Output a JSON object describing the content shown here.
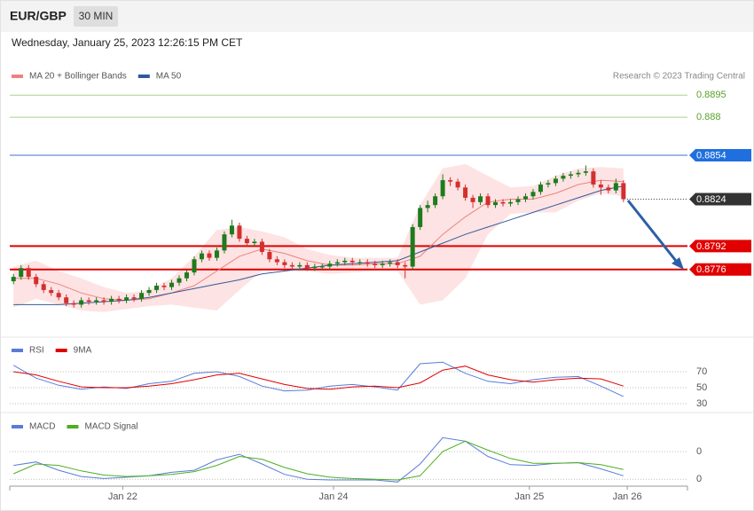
{
  "header": {
    "symbol": "EUR/GBP",
    "interval": "30 MIN",
    "timestamp": "Wednesday, January 25, 2023 12:26:15 PM CET"
  },
  "chart_data": [
    {
      "type": "candlestick",
      "copyright": "Research © 2023 Trading Central",
      "xlim": [
        -0.5,
        89.5
      ],
      "ylim": [
        0.8745,
        0.8897
      ],
      "up_color": "#1e7b1e",
      "down_color": "#d32f2f",
      "open": [
        0.8768,
        0.8771,
        0.8777,
        0.8771,
        0.8766,
        0.8762,
        0.876,
        0.8757,
        0.8753,
        0.8752,
        0.8755,
        0.8754,
        0.8755,
        0.8754,
        0.8756,
        0.8755,
        0.8757,
        0.8756,
        0.876,
        0.8762,
        0.8765,
        0.8764,
        0.8767,
        0.877,
        0.8774,
        0.8783,
        0.8787,
        0.8784,
        0.8789,
        0.88,
        0.8806,
        0.8797,
        0.8794,
        0.8795,
        0.8788,
        0.8783,
        0.8781,
        0.8779,
        0.8778,
        0.8779,
        0.8777,
        0.8778,
        0.8778,
        0.878,
        0.8781,
        0.8782,
        0.8781,
        0.8781,
        0.878,
        0.8779,
        0.878,
        0.8781,
        0.8779,
        0.8778,
        0.8805,
        0.8818,
        0.882,
        0.8826,
        0.8837,
        0.8836,
        0.8832,
        0.8825,
        0.8822,
        0.8826,
        0.882,
        0.8822,
        0.8821,
        0.8822,
        0.8824,
        0.8826,
        0.8829,
        0.8834,
        0.8835,
        0.8838,
        0.884,
        0.8841,
        0.8842,
        0.8843,
        0.8834,
        0.8832,
        0.883,
        0.8835
      ],
      "high": [
        0.8773,
        0.8779,
        0.8779,
        0.8773,
        0.8768,
        0.8764,
        0.8762,
        0.8759,
        0.8755,
        0.8757,
        0.8757,
        0.8757,
        0.8757,
        0.8758,
        0.8758,
        0.8759,
        0.8759,
        0.8762,
        0.8764,
        0.8767,
        0.8767,
        0.8769,
        0.8772,
        0.8776,
        0.8785,
        0.8789,
        0.8789,
        0.8791,
        0.8802,
        0.881,
        0.8808,
        0.8799,
        0.8797,
        0.8797,
        0.879,
        0.8785,
        0.8783,
        0.8781,
        0.8781,
        0.8781,
        0.878,
        0.878,
        0.8782,
        0.8783,
        0.8784,
        0.8784,
        0.8783,
        0.8783,
        0.8782,
        0.8782,
        0.8783,
        0.8783,
        0.8781,
        0.8807,
        0.882,
        0.8823,
        0.8828,
        0.8841,
        0.8839,
        0.8838,
        0.8834,
        0.8827,
        0.8828,
        0.8828,
        0.8824,
        0.8824,
        0.8824,
        0.8826,
        0.8828,
        0.8831,
        0.8836,
        0.8837,
        0.884,
        0.8842,
        0.8843,
        0.8844,
        0.8847,
        0.8845,
        0.8837,
        0.8834,
        0.8838,
        0.8837
      ],
      "low": [
        0.8766,
        0.8769,
        0.8769,
        0.8764,
        0.876,
        0.8758,
        0.8755,
        0.8751,
        0.875,
        0.875,
        0.8752,
        0.8752,
        0.8752,
        0.8752,
        0.8753,
        0.8753,
        0.8754,
        0.8754,
        0.8758,
        0.876,
        0.8762,
        0.8762,
        0.8765,
        0.8768,
        0.8772,
        0.8781,
        0.8782,
        0.8782,
        0.8787,
        0.8798,
        0.8795,
        0.8792,
        0.8792,
        0.8786,
        0.8781,
        0.8779,
        0.8777,
        0.8776,
        0.8776,
        0.8775,
        0.8775,
        0.8776,
        0.8776,
        0.8778,
        0.8779,
        0.8779,
        0.8779,
        0.8778,
        0.8777,
        0.8777,
        0.8778,
        0.8777,
        0.877,
        0.8776,
        0.8803,
        0.8815,
        0.8818,
        0.8824,
        0.8833,
        0.883,
        0.8823,
        0.8818,
        0.882,
        0.8818,
        0.8818,
        0.8819,
        0.8819,
        0.882,
        0.8822,
        0.8824,
        0.8827,
        0.8832,
        0.8833,
        0.8836,
        0.8838,
        0.8839,
        0.884,
        0.8832,
        0.8827,
        0.8828,
        0.8828,
        0.8822
      ],
      "close": [
        0.8771,
        0.8777,
        0.8771,
        0.8766,
        0.8762,
        0.876,
        0.8757,
        0.8753,
        0.8752,
        0.8755,
        0.8754,
        0.8755,
        0.8754,
        0.8756,
        0.8755,
        0.8757,
        0.8756,
        0.876,
        0.8762,
        0.8765,
        0.8764,
        0.8767,
        0.877,
        0.8774,
        0.8783,
        0.8787,
        0.8784,
        0.8789,
        0.88,
        0.8806,
        0.8797,
        0.8794,
        0.8795,
        0.8788,
        0.8783,
        0.8781,
        0.8779,
        0.8778,
        0.8779,
        0.8777,
        0.8778,
        0.8778,
        0.878,
        0.8781,
        0.8782,
        0.8781,
        0.8781,
        0.878,
        0.8779,
        0.878,
        0.8781,
        0.8779,
        0.8778,
        0.8805,
        0.8818,
        0.882,
        0.8826,
        0.8837,
        0.8836,
        0.8832,
        0.8825,
        0.8822,
        0.8826,
        0.882,
        0.8822,
        0.8821,
        0.8822,
        0.8824,
        0.8826,
        0.8829,
        0.8834,
        0.8835,
        0.8838,
        0.884,
        0.8841,
        0.8842,
        0.8843,
        0.8834,
        0.8832,
        0.883,
        0.8835,
        0.8824
      ],
      "series": [
        {
          "name": "MA 20 + Bollinger Bands",
          "color": "#f08080",
          "band_color": "#fde3e3",
          "x": [
            0,
            3,
            6,
            9,
            12,
            15,
            18,
            21,
            24,
            27,
            30,
            33,
            36,
            39,
            42,
            45,
            48,
            51,
            54,
            57,
            60,
            63,
            66,
            69,
            72,
            75,
            78,
            81
          ],
          "values": [
            0.877,
            0.877,
            0.8766,
            0.876,
            0.8756,
            0.8755,
            0.8756,
            0.876,
            0.8765,
            0.8775,
            0.8785,
            0.879,
            0.8787,
            0.8782,
            0.8779,
            0.8779,
            0.878,
            0.878,
            0.8785,
            0.88,
            0.8812,
            0.8822,
            0.8824,
            0.8824,
            0.8828,
            0.8834,
            0.8837,
            0.8836
          ],
          "upper": [
            0.8778,
            0.8782,
            0.8775,
            0.877,
            0.8764,
            0.876,
            0.8762,
            0.877,
            0.8785,
            0.8803,
            0.8805,
            0.8802,
            0.8798,
            0.879,
            0.8786,
            0.8784,
            0.8784,
            0.8784,
            0.882,
            0.8845,
            0.8848,
            0.884,
            0.8832,
            0.8833,
            0.884,
            0.8845,
            0.8846,
            0.8845
          ],
          "lower": [
            0.875,
            0.8756,
            0.8752,
            0.8748,
            0.8747,
            0.8749,
            0.8751,
            0.8752,
            0.875,
            0.8748,
            0.8762,
            0.8775,
            0.8776,
            0.8775,
            0.8773,
            0.8774,
            0.8775,
            0.8775,
            0.8752,
            0.8755,
            0.877,
            0.88,
            0.8814,
            0.8815,
            0.8815,
            0.8823,
            0.8828,
            0.8826
          ]
        },
        {
          "name": "MA 50",
          "color": "#34589a",
          "x": [
            0,
            3,
            6,
            9,
            12,
            15,
            18,
            21,
            24,
            27,
            30,
            33,
            36,
            39,
            42,
            45,
            48,
            51,
            54,
            57,
            60,
            63,
            66,
            69,
            72,
            75,
            78,
            81
          ],
          "values": [
            0.8752,
            0.8752,
            0.8752,
            0.8753,
            0.8754,
            0.8755,
            0.8757,
            0.876,
            0.8763,
            0.8766,
            0.8769,
            0.8773,
            0.8775,
            0.8777,
            0.8779,
            0.878,
            0.8781,
            0.8782,
            0.8788,
            0.8794,
            0.88,
            0.8805,
            0.881,
            0.8815,
            0.882,
            0.8825,
            0.883,
            0.8833
          ]
        }
      ],
      "levels": [
        {
          "value": 0.8895,
          "color": "#5aa02c",
          "line_color": "#a8d48a",
          "boxed": false,
          "dotted": false
        },
        {
          "value": 0.888,
          "color": "#5aa02c",
          "line_color": "#a8d48a",
          "boxed": false,
          "dotted": false
        },
        {
          "value": 0.8854,
          "color": "#1f6fe0",
          "line_color": "#3b6fd0",
          "boxed": true,
          "dotted": false
        },
        {
          "value": 0.8824,
          "color": "#333333",
          "line_color": "#333333",
          "boxed": true,
          "dotted": true
        },
        {
          "value": 0.8792,
          "color": "#e00000",
          "line_color": "#e00000",
          "boxed": true,
          "dotted": false
        },
        {
          "value": 0.8776,
          "color": "#e00000",
          "line_color": "#e00000",
          "boxed": true,
          "dotted": false
        }
      ]
    },
    {
      "type": "line",
      "xlim": [
        -0.5,
        89.5
      ],
      "ylim": [
        20,
        100
      ],
      "yticks": [
        30,
        50,
        70
      ],
      "series": [
        {
          "name": "RSI",
          "color": "#5a7bd8",
          "x": [
            0,
            3,
            6,
            9,
            12,
            15,
            18,
            21,
            24,
            27,
            30,
            33,
            36,
            39,
            42,
            45,
            48,
            51,
            54,
            57,
            60,
            63,
            66,
            69,
            72,
            75,
            78,
            81
          ],
          "values": [
            78,
            62,
            53,
            48,
            51,
            49,
            55,
            58,
            68,
            70,
            64,
            52,
            46,
            47,
            52,
            54,
            51,
            47,
            80,
            82,
            68,
            58,
            55,
            60,
            63,
            64,
            52,
            39
          ]
        },
        {
          "name": "9MA",
          "color": "#e00000",
          "x": [
            0,
            3,
            6,
            9,
            12,
            15,
            18,
            21,
            24,
            27,
            30,
            33,
            36,
            39,
            42,
            45,
            48,
            51,
            54,
            57,
            60,
            63,
            66,
            69,
            72,
            75,
            78,
            81
          ],
          "values": [
            70,
            66,
            58,
            51,
            50,
            50,
            52,
            55,
            60,
            66,
            68,
            61,
            54,
            49,
            48,
            51,
            52,
            50,
            56,
            72,
            77,
            66,
            60,
            57,
            60,
            62,
            61,
            52
          ]
        }
      ]
    },
    {
      "type": "line",
      "xlim": [
        -0.5,
        89.5
      ],
      "ylim": [
        -0.0001,
        0.0009
      ],
      "yticks": [
        {
          "value": 0.0004,
          "label": "0"
        },
        0
      ],
      "xticks": [
        {
          "value": 14.5,
          "label": "Jan 22"
        },
        {
          "value": 42.5,
          "label": "Jan 24"
        },
        {
          "value": 68.5,
          "label": "Jan 25"
        },
        {
          "value": 81.5,
          "label": "Jan 26"
        }
      ],
      "series": [
        {
          "name": "MACD",
          "color": "#5a7bd8",
          "x": [
            0,
            3,
            6,
            9,
            12,
            15,
            18,
            21,
            24,
            27,
            30,
            33,
            36,
            39,
            42,
            45,
            48,
            51,
            54,
            57,
            60,
            63,
            66,
            69,
            72,
            75,
            78,
            81
          ],
          "values": [
            0.0002,
            0.00025,
            0.00013,
            4e-05,
            1e-05,
            3e-05,
            5e-05,
            0.0001,
            0.00013,
            0.00028,
            0.00036,
            0.00022,
            7e-05,
            0,
            -1e-05,
            -1e-05,
            -1e-05,
            -4e-05,
            0.00022,
            0.0006,
            0.00055,
            0.00033,
            0.00021,
            0.0002,
            0.00023,
            0.00024,
            0.00015,
            5e-05
          ]
        },
        {
          "name": "MACD Signal",
          "color": "#4caf20",
          "x": [
            0,
            3,
            6,
            9,
            12,
            15,
            18,
            21,
            24,
            27,
            30,
            33,
            36,
            39,
            42,
            45,
            48,
            51,
            54,
            57,
            60,
            63,
            66,
            69,
            72,
            75,
            78,
            81
          ],
          "values": [
            8e-05,
            0.00022,
            0.0002,
            0.00012,
            6e-05,
            4e-05,
            5e-05,
            7e-05,
            0.00011,
            0.0002,
            0.00033,
            0.00029,
            0.00017,
            8e-05,
            3e-05,
            1e-05,
            0,
            -1e-05,
            5e-05,
            0.0004,
            0.00055,
            0.00042,
            0.0003,
            0.00023,
            0.00023,
            0.00024,
            0.00021,
            0.00014
          ]
        }
      ]
    }
  ]
}
